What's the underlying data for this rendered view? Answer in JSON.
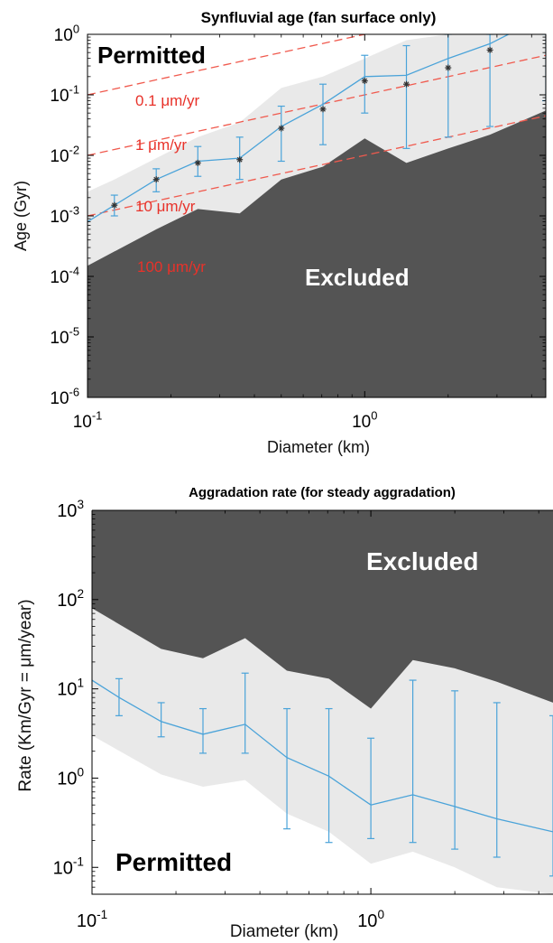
{
  "colors": {
    "permitted_fill": "#e9e9e9",
    "excluded_fill": "#545454",
    "series_line": "#4aa3d9",
    "guide_line": "#f05a4e",
    "guide_label": "#e8322a",
    "mean_marker": "#333333"
  },
  "chart_data": [
    {
      "type": "line",
      "title": "Synfluvial age (fan surface only)",
      "xlabel": "Diameter (km)",
      "ylabel": "Age (Gyr)",
      "xscale": "log",
      "yscale": "log",
      "xlim": [
        0.1,
        4.5
      ],
      "ylim": [
        1e-06,
        1
      ],
      "x_ticks": [
        {
          "value": 0.1,
          "base": "10",
          "exp": "-1"
        },
        {
          "value": 1,
          "base": "10",
          "exp": "0"
        }
      ],
      "y_ticks": [
        {
          "value": 1,
          "base": "10",
          "exp": "0"
        },
        {
          "value": 0.1,
          "base": "10",
          "exp": "-1"
        },
        {
          "value": 0.01,
          "base": "10",
          "exp": "-2"
        },
        {
          "value": 0.001,
          "base": "10",
          "exp": "-3"
        },
        {
          "value": 0.0001,
          "base": "10",
          "exp": "-4"
        },
        {
          "value": 1e-05,
          "base": "10",
          "exp": "-5"
        },
        {
          "value": 1e-06,
          "base": "10",
          "exp": "-6"
        }
      ],
      "region_labels": {
        "permitted": "Permitted",
        "excluded": "Excluded"
      },
      "permitted_upper": {
        "x": [
          0.1,
          0.125,
          0.177,
          0.25,
          0.354,
          0.5,
          0.707,
          1.0,
          1.414,
          2.0,
          2.83,
          4.5
        ],
        "y": [
          0.0025,
          0.004,
          0.009,
          0.02,
          0.035,
          0.13,
          0.2,
          0.4,
          0.8,
          1,
          1,
          1
        ]
      },
      "excluded_upper": {
        "x": [
          0.1,
          0.177,
          0.25,
          0.354,
          0.5,
          0.707,
          1.0,
          1.414,
          2.0,
          2.83,
          4.5
        ],
        "y": [
          0.00015,
          0.0006,
          0.0013,
          0.0011,
          0.004,
          0.0065,
          0.019,
          0.0075,
          0.013,
          0.022,
          0.055
        ]
      },
      "rate_lines": [
        {
          "label": "0.1 μm/yr",
          "rate": 0.1
        },
        {
          "label": "1 μm/yr",
          "rate": 1
        },
        {
          "label": "10 μm/yr",
          "rate": 10
        },
        {
          "label": "100 μm/yr",
          "rate": 100
        }
      ],
      "series": [
        {
          "x": [
            0.1,
            0.125,
            0.177,
            0.25,
            0.354,
            0.5,
            0.707,
            1.0,
            1.414,
            2.0,
            2.83,
            3.3
          ],
          "y": [
            0.0008,
            0.0015,
            0.004,
            0.008,
            0.009,
            0.03,
            0.07,
            0.2,
            0.21,
            0.4,
            0.7,
            1.0
          ]
        }
      ],
      "error_bars": {
        "x": [
          0.125,
          0.177,
          0.25,
          0.354,
          0.5,
          0.707,
          1.0,
          1.414,
          2.0,
          2.83,
          4.5
        ],
        "low": [
          0.001,
          0.0025,
          0.0045,
          0.004,
          0.008,
          0.015,
          0.05,
          0.013,
          0.02,
          0.03,
          0.08
        ],
        "high": [
          0.0022,
          0.006,
          0.014,
          0.02,
          0.065,
          0.15,
          0.45,
          0.65,
          1,
          1,
          1
        ]
      },
      "markers": {
        "x": [
          0.125,
          0.177,
          0.25,
          0.354,
          0.5,
          0.707,
          1.0,
          1.414,
          2.0,
          2.83
        ],
        "y": [
          0.0015,
          0.004,
          0.0075,
          0.0085,
          0.028,
          0.058,
          0.17,
          0.15,
          0.28,
          0.55
        ]
      }
    },
    {
      "type": "line",
      "title": "Aggradation rate (for steady aggradation)",
      "xlabel": "Diameter (km)",
      "ylabel": "Rate (Km/Gyr = μm/year)",
      "xscale": "log",
      "yscale": "log",
      "xlim": [
        0.1,
        4.5
      ],
      "ylim": [
        0.05,
        1000
      ],
      "x_ticks": [
        {
          "value": 0.1,
          "base": "10",
          "exp": "-1"
        },
        {
          "value": 1,
          "base": "10",
          "exp": "0"
        }
      ],
      "y_ticks": [
        {
          "value": 1000,
          "base": "10",
          "exp": "3"
        },
        {
          "value": 100,
          "base": "10",
          "exp": "2"
        },
        {
          "value": 10,
          "base": "10",
          "exp": "1"
        },
        {
          "value": 1,
          "base": "10",
          "exp": "0"
        },
        {
          "value": 0.1,
          "base": "10",
          "exp": "-1"
        }
      ],
      "region_labels": {
        "permitted": "Permitted",
        "excluded": "Excluded"
      },
      "excluded_lower": {
        "x": [
          0.1,
          0.177,
          0.25,
          0.354,
          0.5,
          0.707,
          1.0,
          1.414,
          2.0,
          2.83,
          4.5
        ],
        "y": [
          80,
          28,
          22,
          37,
          16,
          13,
          6,
          21,
          17,
          12,
          7
        ]
      },
      "permitted_lower": {
        "x": [
          0.1,
          0.177,
          0.25,
          0.354,
          0.5,
          0.707,
          1.0,
          1.414,
          2.0,
          2.83,
          4.5
        ],
        "y": [
          3,
          1.1,
          0.8,
          0.95,
          0.4,
          0.25,
          0.11,
          0.15,
          0.1,
          0.06,
          0.05
        ]
      },
      "series": [
        {
          "x": [
            0.1,
            0.125,
            0.177,
            0.25,
            0.354,
            0.5,
            0.707,
            1.0,
            1.414,
            2.0,
            2.83,
            4.5
          ],
          "y": [
            12.5,
            8,
            4.3,
            3.1,
            4,
            1.7,
            1.05,
            0.5,
            0.65,
            0.48,
            0.35,
            0.25
          ]
        }
      ],
      "error_bars": {
        "x": [
          0.125,
          0.177,
          0.25,
          0.354,
          0.5,
          0.707,
          1.0,
          1.414,
          2.0,
          2.83,
          4.5
        ],
        "low": [
          5,
          2.9,
          1.9,
          1.9,
          0.27,
          0.19,
          0.21,
          0.19,
          0.16,
          0.13,
          0.08
        ],
        "high": [
          13,
          7,
          6,
          15,
          6,
          6,
          2.8,
          12.5,
          9.5,
          7,
          5
        ]
      }
    }
  ]
}
